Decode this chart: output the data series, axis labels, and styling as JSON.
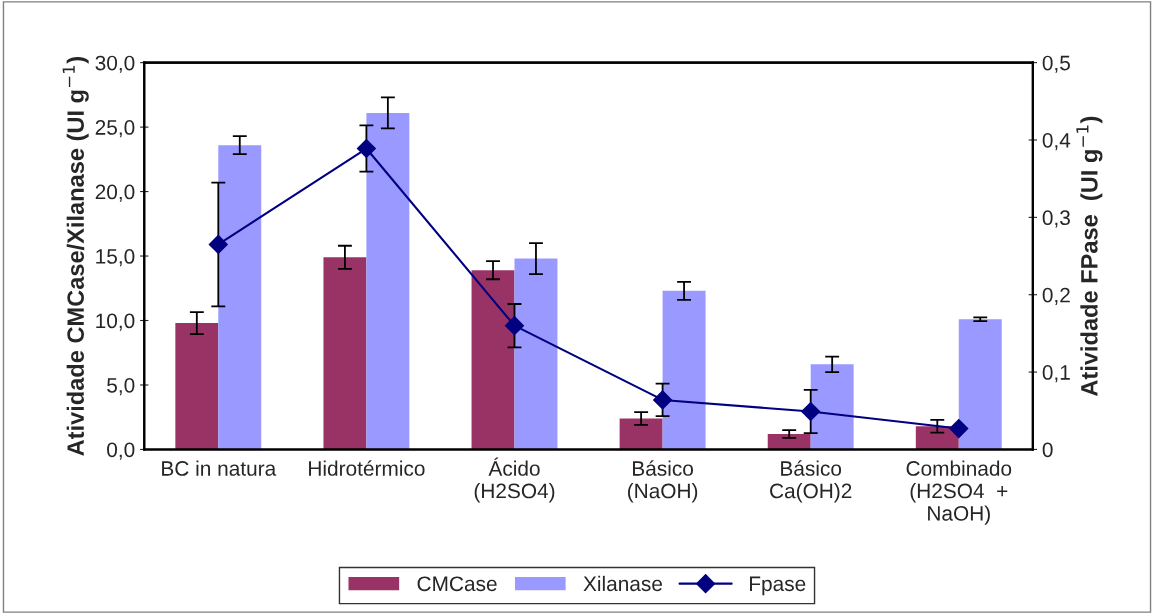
{
  "chart_data": {
    "type": "bar",
    "categories": [
      "BC in natura",
      "Hidrotérmico",
      "Ácido\n(H2SO4)",
      "Básico\n(NaOH)",
      "Básico\nCa(OH)2",
      "Combinado\n(H2SO4  +\nNaOH)"
    ],
    "ylabel": "Atividade CMCase/Xilanase (UI g$^{−1}$)",
    "y2label": "Atividade FPase  (UI g$^{−1}$)",
    "series": [
      {
        "name": "CMCase",
        "color": "#993366",
        "values": [
          9.8,
          14.9,
          13.9,
          2.4,
          1.2,
          1.8
        ],
        "errors": [
          0.85,
          0.9,
          0.7,
          0.5,
          0.3,
          0.5
        ]
      },
      {
        "name": "Xilanase",
        "color": "#9999ff",
        "values": [
          23.6,
          26.1,
          14.8,
          12.3,
          6.6,
          10.1
        ],
        "errors": [
          0.7,
          1.2,
          1.2,
          0.7,
          0.6,
          0.15
        ]
      },
      {
        "name": "Fpase",
        "type": "line",
        "axis": "y2",
        "color": "#000080",
        "marker": "diamond",
        "values": [
          0.265,
          0.389,
          0.16,
          0.064,
          0.049,
          0.027
        ],
        "errors": [
          0.08,
          0.03,
          0.028,
          0.021,
          0.028,
          null
        ]
      }
    ],
    "ylim": [
      0,
      30
    ],
    "yticks": [
      {
        "value": 0,
        "label": "0,0"
      },
      {
        "value": 5,
        "label": "5,0"
      },
      {
        "value": 10,
        "label": "10,0"
      },
      {
        "value": 15,
        "label": "15,0"
      },
      {
        "value": 20,
        "label": "20,0"
      },
      {
        "value": 25,
        "label": "25,0"
      },
      {
        "value": 30,
        "label": "30,0"
      }
    ],
    "y2lim": [
      0,
      0.5
    ],
    "y2ticks": [
      0,
      {
        "value": 0.1,
        "label": "0,1"
      },
      {
        "value": 0.2,
        "label": "0,2"
      },
      {
        "value": 0.3,
        "label": "0,3"
      },
      {
        "value": 0.4,
        "label": "0,4"
      },
      {
        "value": 0.5,
        "label": "0,5"
      }
    ],
    "grid": false,
    "legend": "bottom"
  }
}
